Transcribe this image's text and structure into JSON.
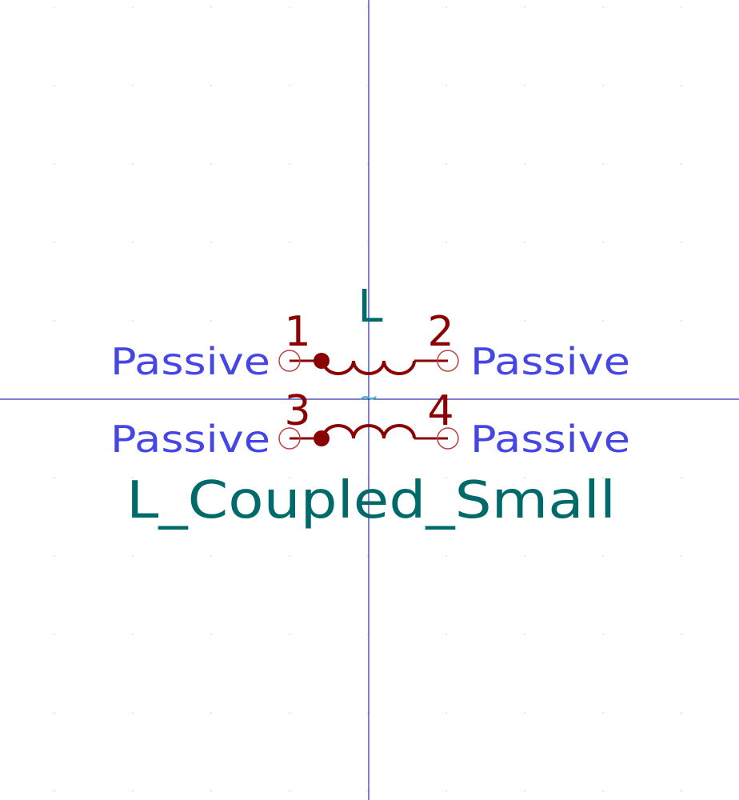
{
  "colors": {
    "background": "#ffffff",
    "grid_dot": "#c8c8c8",
    "axis": "#0000a0",
    "body": "#8b0000",
    "pin_circle": "#c04040",
    "pin_type": "#4646e6",
    "field": "#006a6a",
    "graphic_text": "#48b8b8"
  },
  "symbol": {
    "reference": "L",
    "value": "L_Coupled_Small",
    "coupling_mark": "~"
  },
  "pins": [
    {
      "number": "1",
      "type": "Passive"
    },
    {
      "number": "2",
      "type": "Passive"
    },
    {
      "number": "3",
      "type": "Passive"
    },
    {
      "number": "4",
      "type": "Passive"
    }
  ]
}
